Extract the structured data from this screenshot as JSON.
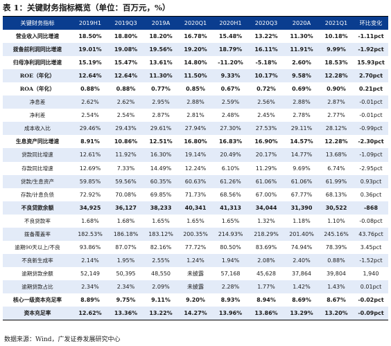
{
  "title": "表 1：关键财务指标概览（单位：百万元，%）",
  "columns": [
    "关键财务指标",
    "2019H1",
    "2019Q3",
    "2019A",
    "2020Q1",
    "2020H1",
    "2020Q3",
    "2020A",
    "2021Q1",
    "环比变化"
  ],
  "rows": [
    {
      "label": "营业收入同比增速",
      "bold": true,
      "cells": [
        "18.50%",
        "18.80%",
        "18.20%",
        "16.78%",
        "15.48%",
        "13.22%",
        "11.30%",
        "10.18%",
        "-1.11pct"
      ]
    },
    {
      "label": "拨备前利润同比增速",
      "bold": true,
      "cells": [
        "19.01%",
        "19.08%",
        "19.56%",
        "19.20%",
        "18.79%",
        "16.11%",
        "11.91%",
        "9.99%",
        "-1.92pct"
      ]
    },
    {
      "label": "归母净利润同比增速",
      "bold": true,
      "cells": [
        "15.19%",
        "15.47%",
        "13.61%",
        "14.80%",
        "-11.20%",
        "-5.18%",
        "2.60%",
        "18.53%",
        "15.93pct"
      ]
    },
    {
      "label": "ROE（年化）",
      "bold": true,
      "cells": [
        "12.64%",
        "12.64%",
        "11.30%",
        "11.50%",
        "9.33%",
        "10.17%",
        "9.58%",
        "12.28%",
        "2.70pct"
      ]
    },
    {
      "label": "ROA（年化）",
      "bold": true,
      "cells": [
        "0.88%",
        "0.88%",
        "0.77%",
        "0.85%",
        "0.67%",
        "0.72%",
        "0.69%",
        "0.90%",
        "0.21pct"
      ]
    },
    {
      "label": "净息差",
      "bold": false,
      "cells": [
        "2.62%",
        "2.62%",
        "2.95%",
        "2.88%",
        "2.59%",
        "2.56%",
        "2.88%",
        "2.87%",
        "-0.01pct"
      ]
    },
    {
      "label": "净利差",
      "bold": false,
      "cells": [
        "2.54%",
        "2.54%",
        "2.87%",
        "2.81%",
        "2.48%",
        "2.45%",
        "2.78%",
        "2.77%",
        "-0.01pct"
      ]
    },
    {
      "label": "成本收入比",
      "bold": false,
      "cells": [
        "29.46%",
        "29.43%",
        "29.61%",
        "27.94%",
        "27.30%",
        "27.53%",
        "29.11%",
        "28.12%",
        "-0.99pct"
      ]
    },
    {
      "label": "生息资产同比增速",
      "bold": true,
      "cells": [
        "8.91%",
        "10.86%",
        "12.51%",
        "16.80%",
        "16.83%",
        "16.90%",
        "14.57%",
        "12.28%",
        "-2.30pct"
      ]
    },
    {
      "label": "贷款同比增速",
      "bold": false,
      "cells": [
        "12.61%",
        "11.92%",
        "16.30%",
        "19.14%",
        "20.49%",
        "20.17%",
        "14.77%",
        "13.68%",
        "-1.09pct"
      ]
    },
    {
      "label": "存款同比增速",
      "bold": false,
      "cells": [
        "12.69%",
        "7.33%",
        "14.49%",
        "12.24%",
        "6.10%",
        "11.29%",
        "9.69%",
        "6.74%",
        "-2.95pct"
      ]
    },
    {
      "label": "贷款/生息资产",
      "bold": false,
      "cells": [
        "59.85%",
        "59.56%",
        "60.35%",
        "60.63%",
        "61.26%",
        "61.06%",
        "61.06%",
        "61.99%",
        "0.93pct"
      ]
    },
    {
      "label": "存款/计息负债",
      "bold": false,
      "cells": [
        "72.92%",
        "70.08%",
        "69.85%",
        "71.73%",
        "68.56%",
        "67.00%",
        "67.77%",
        "68.13%",
        "0.36pct"
      ]
    },
    {
      "label": "不良贷款余额",
      "bold": true,
      "cells": [
        "34,925",
        "36,127",
        "38,233",
        "40,341",
        "41,313",
        "34,044",
        "31,390",
        "30,522",
        "-868"
      ]
    },
    {
      "label": "不良贷款率",
      "bold": false,
      "cells": [
        "1.68%",
        "1.68%",
        "1.65%",
        "1.65%",
        "1.65%",
        "1.32%",
        "1.18%",
        "1.10%",
        "-0.08pct"
      ]
    },
    {
      "label": "拨备覆盖率",
      "bold": false,
      "cells": [
        "182.53%",
        "186.18%",
        "183.12%",
        "200.35%",
        "214.93%",
        "218.29%",
        "201.40%",
        "245.16%",
        "43.76pct"
      ]
    },
    {
      "label": "逾期90天以上/不良",
      "bold": false,
      "cells": [
        "93.86%",
        "87.07%",
        "82.16%",
        "77.72%",
        "80.50%",
        "83.69%",
        "74.94%",
        "78.39%",
        "3.45pct"
      ]
    },
    {
      "label": "不良新生成率",
      "bold": false,
      "cells": [
        "2.14%",
        "1.95%",
        "2.55%",
        "1.24%",
        "1.94%",
        "2.08%",
        "2.40%",
        "0.88%",
        "-1.52pct"
      ]
    },
    {
      "label": "逾期贷款余额",
      "bold": false,
      "cells": [
        "52,149",
        "50,395",
        "48,550",
        "未披露",
        "57,168",
        "45,628",
        "37,864",
        "39,804",
        "1,940"
      ]
    },
    {
      "label": "逾期贷款占比",
      "bold": false,
      "cells": [
        "2.34%",
        "2.34%",
        "2.09%",
        "未披露",
        "2.28%",
        "1.77%",
        "1.42%",
        "1.43%",
        "0.01pct"
      ]
    },
    {
      "label": "核心一级资本充足率",
      "bold": true,
      "cells": [
        "8.89%",
        "9.75%",
        "9.11%",
        "9.20%",
        "8.93%",
        "8.94%",
        "8.69%",
        "8.67%",
        "-0.02pct"
      ]
    },
    {
      "label": "资本充足率",
      "bold": true,
      "cells": [
        "12.62%",
        "13.36%",
        "13.22%",
        "14.27%",
        "13.96%",
        "13.86%",
        "13.29%",
        "13.20%",
        "-0.09pct"
      ]
    }
  ],
  "source": "数据来源：Wind，广发证券发展研究中心",
  "colors": {
    "header_bg": "#0a3d8f",
    "header_text": "#ffffff",
    "stripe": "#e3ebf8"
  }
}
